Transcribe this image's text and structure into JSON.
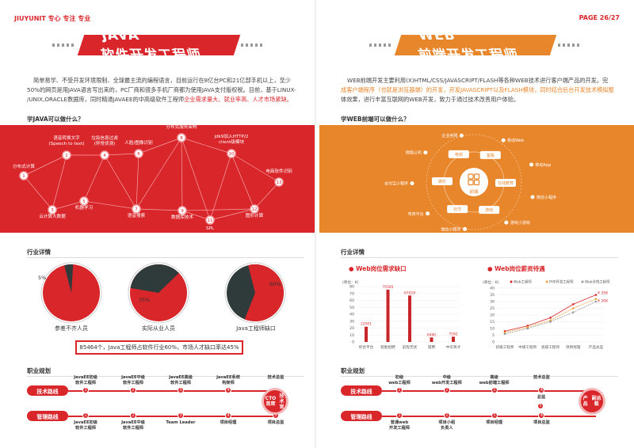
{
  "header": {
    "brand": "JIUYUNIT 专心 专注 专业",
    "page": "PAGE 26/27"
  },
  "left": {
    "banner_en": "JAVA",
    "banner_cn": "软件开发工程师",
    "intro_lines": [
      "简单易学、不受开发环境限制、全球最主流的编程语言，目前运行在8亿台PC和21亿部手机以上，至少",
      "50%的网页是用JAVA语言写出来的，PC厂商和很多手机厂商都为使用JAVA支付版权税。目前，基于LINUX-",
      "/UNIX,ORACLE数据库，同时精通JAVAEE的中高级软件工程师"
    ],
    "intro_highlight": "企业需求量大、就业率高、人才市场紧缺。",
    "question": "学JAVA可以做什么？",
    "nodes": [
      {
        "n": "1",
        "label": "分布式计算"
      },
      {
        "n": "2",
        "label": "语音转换文字\n(Speech to text)"
      },
      {
        "n": "3",
        "label": "云计算大数据"
      },
      {
        "n": "4",
        "label": "垃圾信息过滤\n(异常侦测)"
      },
      {
        "n": "5",
        "label": "机器学习"
      },
      {
        "n": "6",
        "label": "人脸/图像识别"
      },
      {
        "n": "7",
        "label": "语音搜索"
      },
      {
        "n": "8",
        "label": "分布式服务架构"
      },
      {
        "n": "9",
        "label": "数据库技术"
      },
      {
        "n": "10",
        "label": "jdk9加入HTTP/2\nclient级模块"
      },
      {
        "n": "11",
        "label": "SPL"
      },
      {
        "n": "12",
        "label": "图形计算"
      },
      {
        "n": "13",
        "label": "电商软件识别"
      }
    ],
    "industry_title": "行业详情",
    "pies": [
      {
        "label": "参差不齐人员",
        "value": 5,
        "text": "5%"
      },
      {
        "label": "实际从业人员",
        "value": 35,
        "text": "35%"
      },
      {
        "label": "Java工程师缺口",
        "value": 60,
        "text": "60%"
      }
    ],
    "stat": "85464个，Java工程师占软件行业60%，市场人才缺口率达45%",
    "career_title": "职业规划",
    "tech_route": "技术路线",
    "mgmt_route": "管理路线",
    "tech_steps": [
      "JavaEE初级\n软件工程师",
      "JavaEE中级\n软件工程师",
      "JavaEE高级\n软件工程师",
      "JavaEE系统\n构架师",
      "技术总监"
    ],
    "mgmt_steps": [
      "JavaEE初级\n软件工程师",
      "JavaEE中级\n软件工程师",
      "Team Leader",
      "项目经理",
      "项目总监"
    ],
    "goal": "CTO 首席\n技术官"
  },
  "right": {
    "banner_en": "WEB",
    "banner_cn": "前端开发工程师",
    "intro_lines": [
      "WEB前端开发主要利用(X)HTML/CSS/JAVASCRIPT/FLASH等各种WEB技术进行客户端产品的开发。完",
      "成客户端程序（也就是浏览器端）的开发，开发JAVASCRIPT以及FLASH模块，同时结合后台开发技术模拟整",
      "体效果，进行丰富互联网的WEB开发，致力于通过技术改善用户体验。"
    ],
    "question": "学WEB前端可以做什么？",
    "center": "前端",
    "inner": [
      "电商",
      "金融",
      "在线教育",
      "游戏",
      "社交",
      "娱乐"
    ],
    "outer": [
      "网络公司",
      "企业官网",
      "移动Web",
      "移动App",
      "微信小程序",
      "游戏小游戏",
      "微信小程序",
      "电商平台",
      "支付宝小程序"
    ],
    "industry_title": "行业详情",
    "chart1": {
      "title": "Web岗位需求缺口",
      "unit": "(单位：K)",
      "yticks": [
        "80",
        "70",
        "60",
        "50",
        "40",
        "30",
        "20",
        "10",
        "0"
      ]
    },
    "chart2": {
      "title": "Web岗位薪资待遇",
      "unit": "(单位：K)",
      "yticks": [
        "40",
        "35",
        "30",
        "25",
        "20",
        "15",
        "10",
        "5",
        "0"
      ],
      "callouts": [
        "¥ 35K",
        "¥ 30K"
      ]
    },
    "career_title": "职业规划",
    "tech_route": "技术路线",
    "mgmt_route": "管理路线",
    "tech_steps": [
      "初级\nweb工程师",
      "中级\nweb开发工程师",
      "高级\nweb前端工程师",
      "技术总监"
    ],
    "mgmt_steps": [
      "普通web\n开发工程师",
      "项目小组\n负责人",
      "项目经理",
      "项目总监"
    ],
    "mid_step": "总监",
    "goal": "产品\n副总裁"
  },
  "chart_data": [
    {
      "type": "bar",
      "title": "Web岗位需求缺口",
      "ylabel": "(单位：K)",
      "ylim": [
        0,
        80
      ],
      "categories": [
        "综合平台",
        "智能招聘",
        "前程无忧",
        "猎聘",
        "中华英才"
      ],
      "values": [
        22001,
        75565,
        67029,
        6490,
        7592
      ]
    },
    {
      "type": "line",
      "title": "Web岗位薪资待遇",
      "ylabel": "(单位：K)",
      "ylim": [
        0,
        40
      ],
      "categories": [
        "初级工程师",
        "中级工程师",
        "高级工程师",
        "项目经理",
        "产品总监"
      ],
      "series": [
        {
          "name": "Web工程师",
          "values": [
            8,
            12,
            18,
            28,
            35
          ]
        },
        {
          "name": "PHP开发工程师",
          "values": [
            7,
            11,
            16,
            25,
            32
          ]
        },
        {
          "name": "Web全栈工程师",
          "values": [
            6,
            10,
            15,
            22,
            30
          ]
        }
      ]
    }
  ]
}
